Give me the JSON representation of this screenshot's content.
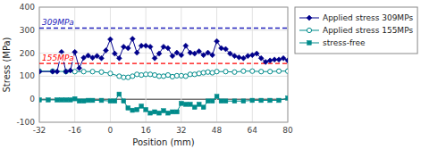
{
  "chart_data": {
    "type": "line",
    "xlabel": "Position (mm)",
    "ylabel": "Stress (MPa)",
    "xlim": [
      -32,
      80
    ],
    "ylim": [
      -100,
      400
    ],
    "xticks": [
      -32,
      -16,
      0,
      16,
      32,
      48,
      64,
      80
    ],
    "yticks": [
      -100,
      0,
      100,
      200,
      300,
      400
    ],
    "grid": true,
    "legend": "right",
    "annotations": [
      {
        "text": "309MPa",
        "value": 309,
        "color": "#2222BB",
        "line_style": "dashed"
      },
      {
        "text": "155MPa",
        "value": 155,
        "color": "red",
        "line_style": "dashed"
      }
    ],
    "series": [
      {
        "name": "Applied stress 309MPs",
        "color": "#00008B",
        "marker": "diamond",
        "x": [
          -32,
          -26,
          -24,
          -22,
          -20,
          -18,
          -16,
          -14,
          -12,
          -10,
          -8,
          -6,
          -4,
          -2,
          0,
          2,
          4,
          6,
          8,
          10,
          12,
          14,
          16,
          18,
          20,
          22,
          24,
          26,
          28,
          30,
          32,
          34,
          36,
          38,
          40,
          42,
          44,
          46,
          48,
          50,
          52,
          54,
          56,
          58,
          60,
          62,
          64,
          66,
          68,
          70,
          72,
          74,
          76,
          78,
          80
        ],
        "values": [
          120,
          120,
          120,
          205,
          120,
          125,
          205,
          135,
          180,
          190,
          180,
          188,
          178,
          212,
          260,
          198,
          178,
          228,
          222,
          262,
          202,
          232,
          232,
          228,
          178,
          198,
          228,
          222,
          188,
          202,
          192,
          232,
          202,
          198,
          208,
          192,
          202,
          192,
          252,
          222,
          218,
          198,
          188,
          182,
          178,
          188,
          192,
          198,
          178,
          162,
          168,
          172,
          172,
          178,
          168
        ]
      },
      {
        "name": "Applied stress 155MPs",
        "color": "#008B8B",
        "marker": "open_circle",
        "x": [
          -32,
          -26,
          -20,
          -16,
          -12,
          -8,
          -4,
          0,
          4,
          6,
          8,
          10,
          12,
          14,
          16,
          18,
          20,
          22,
          24,
          26,
          28,
          30,
          32,
          34,
          36,
          38,
          40,
          42,
          44,
          46,
          48,
          52,
          56,
          60,
          64,
          68,
          72,
          76,
          80
        ],
        "values": [
          122,
          122,
          120,
          120,
          120,
          120,
          118,
          112,
          100,
          95,
          95,
          100,
          108,
          105,
          108,
          108,
          105,
          100,
          100,
          105,
          98,
          102,
          102,
          100,
          108,
          108,
          112,
          115,
          118,
          115,
          120,
          120,
          118,
          122,
          122,
          120,
          120,
          122,
          122
        ]
      },
      {
        "name": "stress-free",
        "color": "#008B8B",
        "marker": "square",
        "x": [
          -32,
          -28,
          -24,
          -22,
          -20,
          -18,
          -16,
          -14,
          -12,
          -10,
          -8,
          -4,
          0,
          2,
          4,
          6,
          8,
          10,
          12,
          14,
          16,
          18,
          20,
          22,
          24,
          26,
          28,
          30,
          32,
          34,
          36,
          38,
          40,
          42,
          44,
          46,
          48,
          50,
          52,
          56,
          60,
          64,
          68,
          72,
          76,
          80
        ],
        "values": [
          -3,
          -3,
          -3,
          -3,
          -3,
          -3,
          2,
          -8,
          -8,
          -5,
          -5,
          -5,
          -8,
          -8,
          22,
          -8,
          -38,
          -48,
          -45,
          -30,
          -45,
          -60,
          -55,
          -60,
          -50,
          -60,
          -55,
          -55,
          -18,
          -22,
          -22,
          -35,
          -22,
          -35,
          -8,
          -8,
          12,
          -8,
          -8,
          -8,
          -8,
          -5,
          -5,
          -5,
          -5,
          5
        ]
      }
    ]
  }
}
